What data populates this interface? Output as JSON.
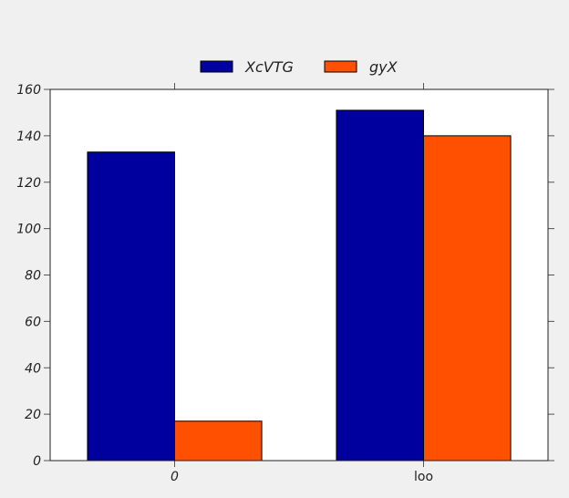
{
  "chart_data": {
    "type": "bar",
    "categories": [
      "0",
      "loo"
    ],
    "series": [
      {
        "name": "XcVTG",
        "values": [
          133,
          151
        ],
        "color": "#00009f"
      },
      {
        "name": "gyX",
        "values": [
          17,
          140
        ],
        "color": "#ff4f00"
      }
    ],
    "title": "",
    "xlabel": "",
    "ylabel": "",
    "ylim": [
      0,
      160
    ],
    "yticks": [
      "0",
      "20",
      "40",
      "60",
      "80",
      "100",
      "120",
      "140",
      "160"
    ],
    "grid": false,
    "legend_position": "top-center",
    "background": "#f0f0f0",
    "plot_background": "#ffffff"
  }
}
